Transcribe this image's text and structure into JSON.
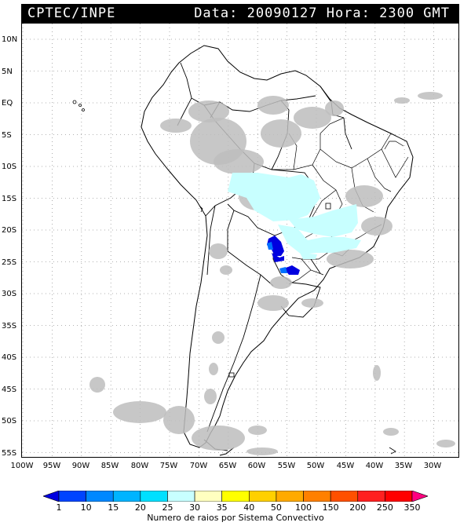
{
  "header": {
    "source": "CPTEC/INPE",
    "datetime": "Data: 20090127 Hora: 2300 GMT"
  },
  "map": {
    "lat_labels": [
      "10N",
      "5N",
      "EQ",
      "5S",
      "10S",
      "15S",
      "20S",
      "25S",
      "30S",
      "35S",
      "40S",
      "45S",
      "50S",
      "55S"
    ],
    "lon_labels": [
      "100W",
      "95W",
      "90W",
      "85W",
      "80W",
      "75W",
      "70W",
      "65W",
      "60W",
      "55W",
      "50W",
      "45W",
      "40W",
      "35W",
      "30W"
    ]
  },
  "legend": {
    "ticks": [
      "1",
      "10",
      "15",
      "20",
      "25",
      "30",
      "35",
      "40",
      "50",
      "100",
      "150",
      "200",
      "250",
      "350"
    ],
    "colors": [
      "#0000e0",
      "#0044ff",
      "#0088ff",
      "#00b4ff",
      "#00e0ff",
      "#c8ffff",
      "#ffffc0",
      "#ffff00",
      "#ffd000",
      "#ffaa00",
      "#ff8000",
      "#ff5000",
      "#ff2020",
      "#ff0000",
      "#ff0080"
    ],
    "caption": "Numero de raios por Sistema Convectivo"
  }
}
